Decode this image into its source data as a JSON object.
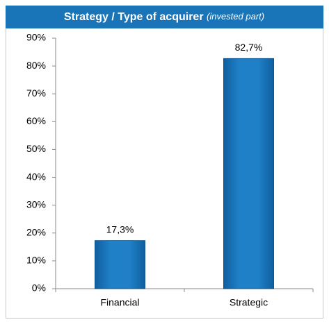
{
  "chart_data": {
    "type": "bar",
    "title": "Strategy / Type of acquirer",
    "subtitle": "(invested part)",
    "categories": [
      "Financial",
      "Strategic"
    ],
    "values": [
      17.3,
      82.7
    ],
    "value_labels": [
      "17,3%",
      "82,7%"
    ],
    "color": "#1b75bc",
    "ylim": [
      0,
      90
    ],
    "yticks": [
      {
        "value": 0,
        "label": "0%"
      },
      {
        "value": 10,
        "label": "10%"
      },
      {
        "value": 20,
        "label": "20%"
      },
      {
        "value": 30,
        "label": "30%"
      },
      {
        "value": 40,
        "label": "40%"
      },
      {
        "value": 50,
        "label": "50%"
      },
      {
        "value": 60,
        "label": "60%"
      },
      {
        "value": 70,
        "label": "70%"
      },
      {
        "value": 80,
        "label": "80%"
      },
      {
        "value": 90,
        "label": "90%"
      }
    ],
    "grid": false
  }
}
